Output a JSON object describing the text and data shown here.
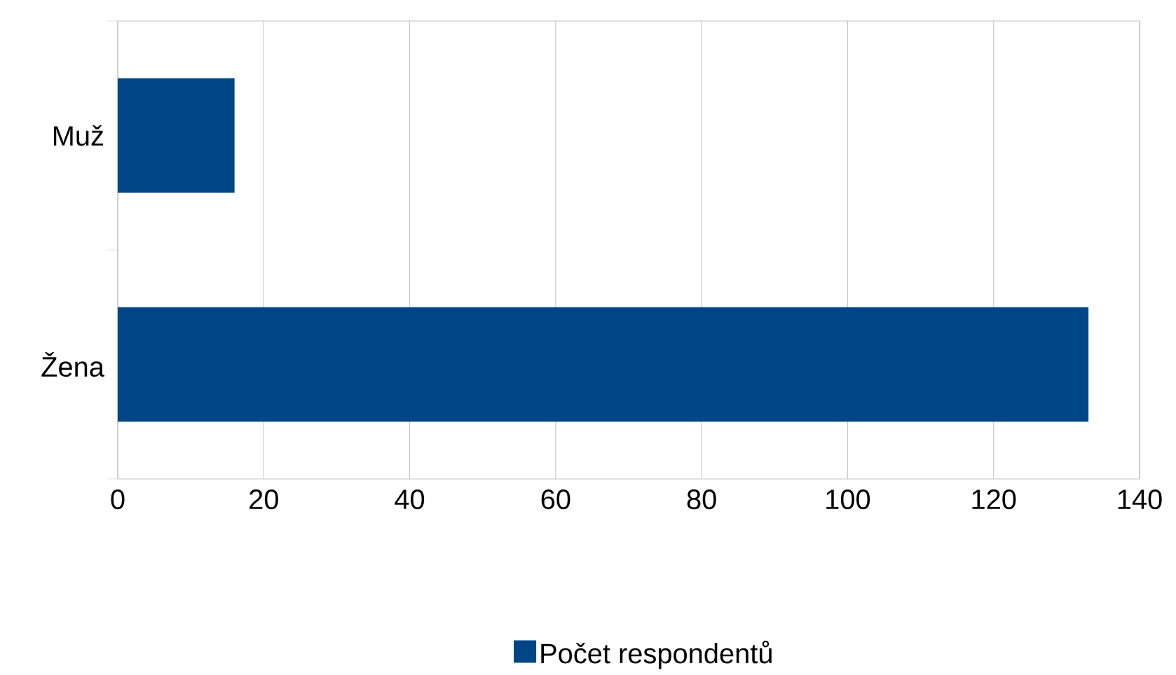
{
  "chart_data": {
    "type": "bar",
    "orientation": "horizontal",
    "categories": [
      "Muž",
      "Žena"
    ],
    "series": [
      {
        "name": "Počet respondentů",
        "color": "#004586",
        "values": [
          16,
          133
        ]
      }
    ],
    "xlim": [
      0,
      140
    ],
    "xticks": [
      0,
      20,
      40,
      60,
      80,
      100,
      120,
      140
    ],
    "grid": "x",
    "legend": "bottom"
  }
}
